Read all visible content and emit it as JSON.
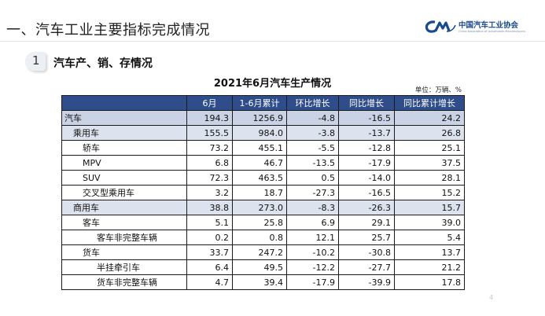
{
  "slide": {
    "title": "一、汽车工业主要指标完成情况",
    "section_number": "1",
    "section_title": "汽车产、销、存情况",
    "page_number": "4"
  },
  "logo": {
    "name_cn": "中国汽车工业协会",
    "name_en": "China Association of Automobile Manufacturers",
    "mark": "CAAM-logo-mark",
    "color": "#1a4a8a"
  },
  "table": {
    "title": "2021年6月汽车生产情况",
    "unit": "单位：万辆、%",
    "header_color": "#2e4d8a",
    "headers": [
      "",
      "6月",
      "1-6月累计",
      "环比增长",
      "同比增长",
      "同比累计增长"
    ],
    "rows": [
      {
        "label": "汽车",
        "level": 0,
        "values": [
          "194.3",
          "1256.9",
          "-4.8",
          "-16.5",
          "24.2"
        ]
      },
      {
        "label": "乘用车",
        "level": 1,
        "values": [
          "155.5",
          "984.0",
          "-3.8",
          "-13.7",
          "26.8"
        ]
      },
      {
        "label": "轿车",
        "level": 2,
        "values": [
          "73.2",
          "455.1",
          "-5.5",
          "-12.8",
          "25.1"
        ]
      },
      {
        "label": "MPV",
        "level": 2,
        "values": [
          "6.8",
          "46.7",
          "-13.5",
          "-17.9",
          "37.5"
        ]
      },
      {
        "label": "SUV",
        "level": 2,
        "values": [
          "72.3",
          "463.5",
          "0.5",
          "-14.0",
          "28.1"
        ]
      },
      {
        "label": "交叉型乘用车",
        "level": 2,
        "values": [
          "3.2",
          "18.7",
          "-27.3",
          "-16.5",
          "15.2"
        ]
      },
      {
        "label": "商用车",
        "level": 1,
        "values": [
          "38.8",
          "273.0",
          "-8.3",
          "-26.3",
          "15.7"
        ]
      },
      {
        "label": "客车",
        "level": 2,
        "values": [
          "5.1",
          "25.8",
          "6.9",
          "29.1",
          "39.0"
        ]
      },
      {
        "label": "客车非完整车辆",
        "level": 3,
        "values": [
          "0.2",
          "0.8",
          "12.1",
          "25.7",
          "5.4"
        ]
      },
      {
        "label": "货车",
        "level": 2,
        "values": [
          "33.7",
          "247.2",
          "-10.2",
          "-30.8",
          "13.7"
        ]
      },
      {
        "label": "半挂牵引车",
        "level": 3,
        "values": [
          "6.4",
          "49.5",
          "-12.2",
          "-27.7",
          "21.2"
        ]
      },
      {
        "label": "货车非完整车辆",
        "level": 3,
        "values": [
          "4.7",
          "39.4",
          "-17.9",
          "-39.9",
          "17.8"
        ]
      }
    ]
  }
}
